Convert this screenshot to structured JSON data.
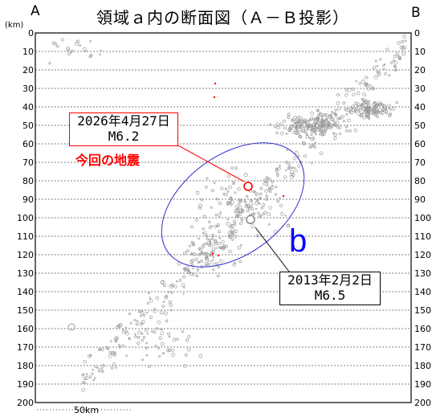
{
  "header": {
    "corner_left": "A",
    "corner_right": "B",
    "title": "領域ａ内の断面図（Ａ－Ｂ投影）",
    "unit": "(km)"
  },
  "chart_data": {
    "type": "scatter",
    "title": "領域ａ内の断面図（Ａ－Ｂ投影）",
    "ylabel": "(km)",
    "ylim": [
      0,
      200
    ],
    "y_ticks": [
      0,
      10,
      20,
      30,
      40,
      50,
      60,
      70,
      80,
      90,
      100,
      110,
      120,
      130,
      140,
      150,
      160,
      170,
      180,
      190,
      200
    ],
    "scale_bar": "50km",
    "region_label": "b",
    "colors": {
      "current": "#ff0000",
      "past": "#999999",
      "region": "#3333cc"
    },
    "events": [
      {
        "date": "2026年4月27日",
        "magnitude": "M6.2",
        "note": "今回の地震",
        "depth_km": 83
      },
      {
        "date": "2013年2月2日",
        "magnitude": "M6.5",
        "depth_km": 101
      }
    ]
  }
}
